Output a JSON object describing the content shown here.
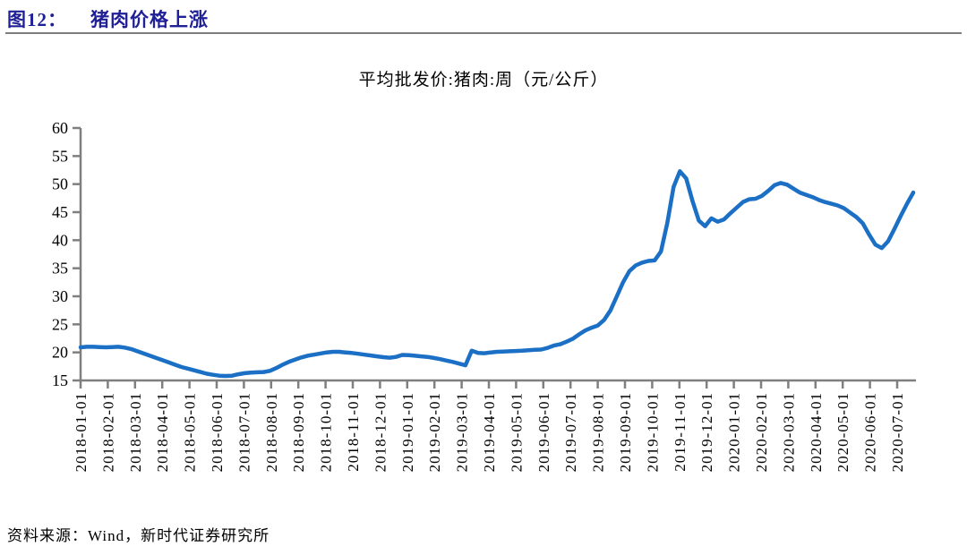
{
  "figure": {
    "label": "图12：",
    "title": "猪肉价格上涨",
    "source": "资料来源：Wind，新时代证券研究所"
  },
  "chart_data": {
    "type": "line",
    "title": "平均批发价:猪肉:周（元/公斤）",
    "xlabel": "",
    "ylabel": "",
    "unit": "元/公斤",
    "ylim": [
      15,
      60
    ],
    "y_ticks": [
      60,
      55,
      50,
      45,
      40,
      35,
      30,
      25,
      20,
      15
    ],
    "grid": false,
    "legend_position": "none",
    "x_tick_labels": [
      "2018-01-01",
      "2018-02-01",
      "2018-03-01",
      "2018-04-01",
      "2018-05-01",
      "2018-06-01",
      "2018-07-01",
      "2018-08-01",
      "2018-09-01",
      "2018-10-01",
      "2018-11-01",
      "2018-12-01",
      "2019-01-01",
      "2019-02-01",
      "2019-03-01",
      "2019-04-01",
      "2019-05-01",
      "2019-06-01",
      "2019-07-01",
      "2019-08-01",
      "2019-09-01",
      "2019-10-01",
      "2019-11-01",
      "2019-12-01",
      "2020-01-01",
      "2020-02-01",
      "2020-03-01",
      "2020-04-01",
      "2020-05-01",
      "2020-06-01",
      "2020-07-01"
    ],
    "series": [
      {
        "name": "平均批发价:猪肉:周",
        "start_date": "2018-01-05",
        "interval_days": 7,
        "values": [
          20.9,
          21.0,
          21.0,
          20.95,
          20.9,
          20.95,
          21.0,
          20.85,
          20.6,
          20.2,
          19.8,
          19.4,
          19.0,
          18.6,
          18.2,
          17.8,
          17.4,
          17.1,
          16.8,
          16.5,
          16.2,
          16.0,
          15.85,
          15.8,
          15.85,
          16.1,
          16.3,
          16.4,
          16.45,
          16.5,
          16.7,
          17.2,
          17.8,
          18.3,
          18.7,
          19.1,
          19.4,
          19.6,
          19.8,
          20.0,
          20.1,
          20.1,
          20.0,
          19.9,
          19.75,
          19.6,
          19.45,
          19.3,
          19.15,
          19.05,
          19.2,
          19.55,
          19.5,
          19.4,
          19.3,
          19.2,
          19.0,
          18.8,
          18.55,
          18.3,
          18.0,
          17.7,
          20.3,
          19.9,
          19.85,
          20.0,
          20.1,
          20.15,
          20.2,
          20.25,
          20.3,
          20.4,
          20.45,
          20.5,
          20.8,
          21.2,
          21.45,
          21.9,
          22.4,
          23.2,
          23.9,
          24.4,
          24.8,
          25.8,
          27.5,
          30.0,
          32.5,
          34.5,
          35.5,
          36.0,
          36.3,
          36.4,
          38.0,
          43.0,
          49.5,
          52.3,
          51.0,
          47.0,
          43.5,
          42.5,
          43.9,
          43.3,
          43.7,
          44.8,
          45.8,
          46.8,
          47.3,
          47.4,
          47.9,
          48.8,
          49.8,
          50.2,
          49.9,
          49.2,
          48.5,
          48.1,
          47.7,
          47.2,
          46.8,
          46.5,
          46.2,
          45.7,
          44.9,
          44.1,
          43.0,
          41.0,
          39.2,
          38.6,
          39.8,
          42.0,
          44.3,
          46.5,
          48.5
        ]
      }
    ],
    "colors": {
      "line": "#1B6FC4",
      "axis": "#7F7F7F",
      "text": "#000000",
      "header": "#1F1F96"
    }
  }
}
